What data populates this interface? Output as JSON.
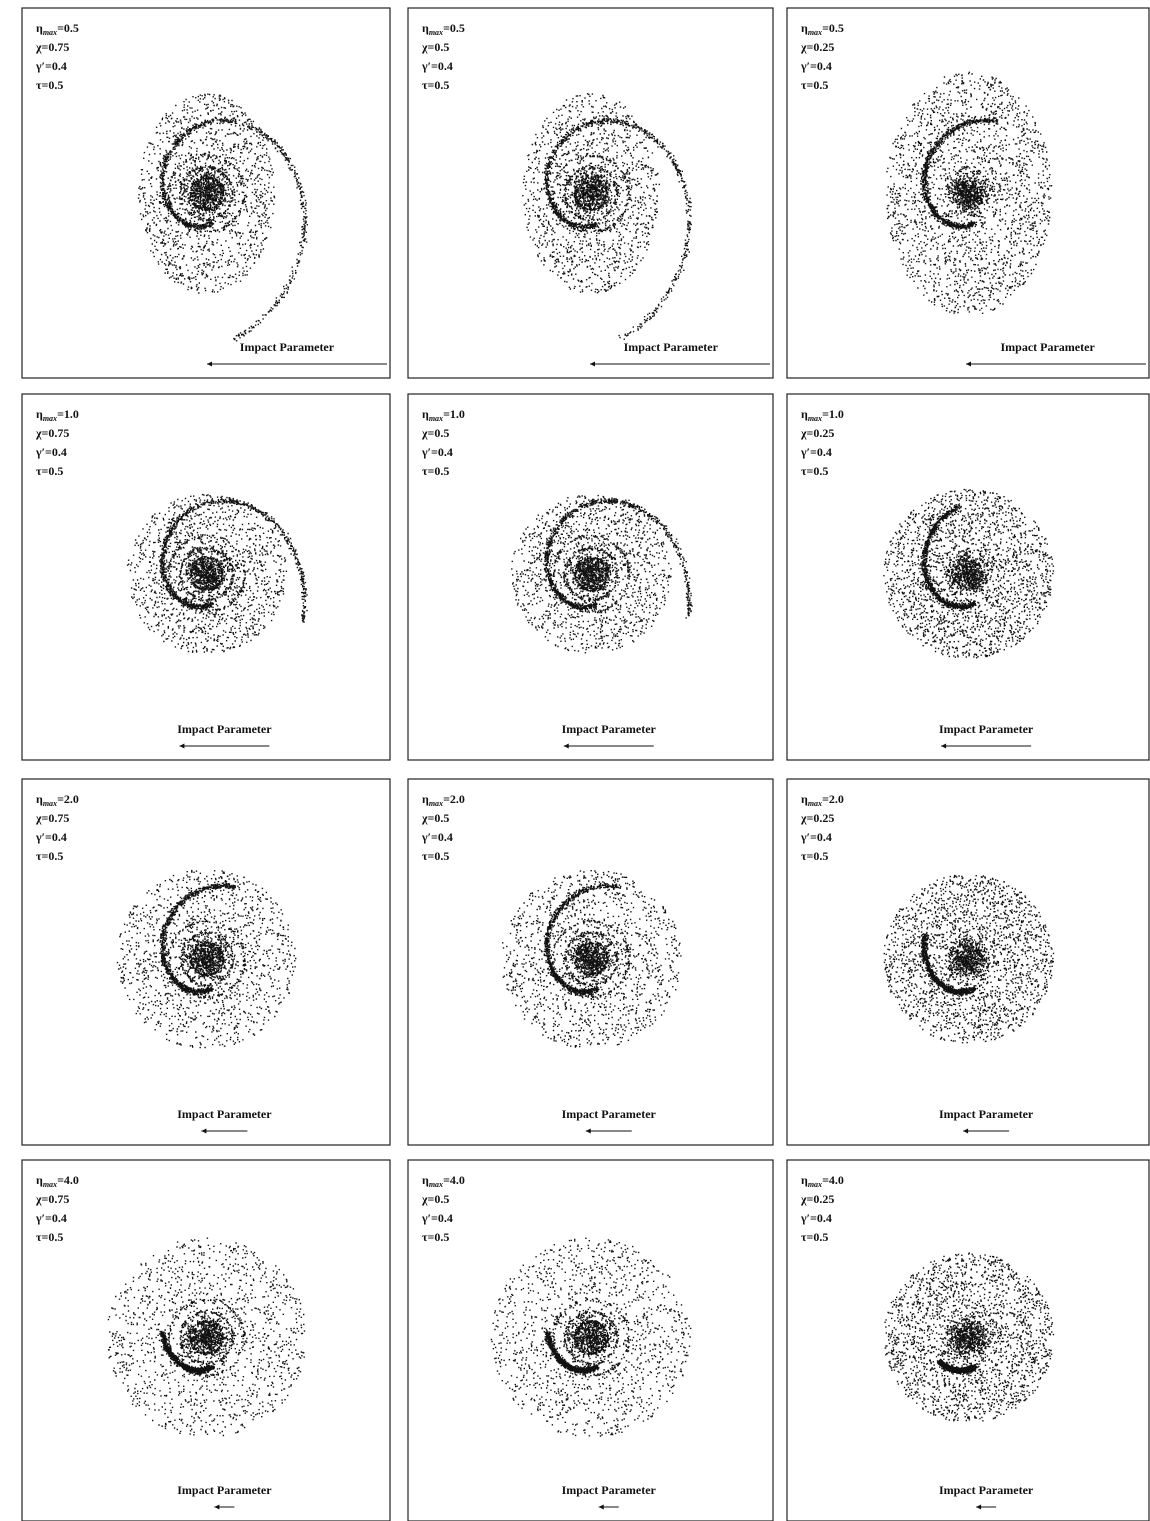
{
  "panels": [
    {
      "params": [
        {
          "name": "η",
          "sub": "max",
          "value": "=0.5"
        },
        {
          "name": "χ",
          "value": "=0.75"
        },
        {
          "name": "γ′",
          "value": "=0.4"
        },
        {
          "name": "τ",
          "value": "=0.5"
        }
      ],
      "scale_label": "Impact Parameter"
    },
    {
      "params": [
        {
          "name": "η",
          "sub": "max",
          "value": "=0.5"
        },
        {
          "name": "χ",
          "value": "=0.5"
        },
        {
          "name": "γ′",
          "value": "=0.4"
        },
        {
          "name": "τ",
          "value": "=0.5"
        }
      ],
      "scale_label": "Impact Parameter"
    },
    {
      "params": [
        {
          "name": "η",
          "sub": "max",
          "value": "=0.5"
        },
        {
          "name": "χ",
          "value": "=0.25"
        },
        {
          "name": "γ′",
          "value": "=0.4"
        },
        {
          "name": "τ",
          "value": "=0.5"
        }
      ],
      "scale_label": "Impact Parameter"
    },
    {
      "params": [
        {
          "name": "η",
          "sub": "max",
          "value": "=1.0"
        },
        {
          "name": "χ",
          "value": "=0.75"
        },
        {
          "name": "γ′",
          "value": "=0.4"
        },
        {
          "name": "τ",
          "value": "=0.5"
        }
      ],
      "scale_label": "Impact Parameter"
    },
    {
      "params": [
        {
          "name": "η",
          "sub": "max",
          "value": "=1.0"
        },
        {
          "name": "χ",
          "value": "=0.5"
        },
        {
          "name": "γ′",
          "value": "=0.4"
        },
        {
          "name": "τ",
          "value": "=0.5"
        }
      ],
      "scale_label": "Impact Parameter"
    },
    {
      "params": [
        {
          "name": "η",
          "sub": "max",
          "value": "=1.0"
        },
        {
          "name": "χ",
          "value": "=0.25"
        },
        {
          "name": "γ′",
          "value": "=0.4"
        },
        {
          "name": "τ",
          "value": "=0.5"
        }
      ],
      "scale_label": "Impact Parameter"
    },
    {
      "params": [
        {
          "name": "η",
          "sub": "max",
          "value": "=2.0"
        },
        {
          "name": "χ",
          "value": "=0.75"
        },
        {
          "name": "γ′",
          "value": "=0.4"
        },
        {
          "name": "τ",
          "value": "=0.5"
        }
      ],
      "scale_label": "Impact Parameter"
    },
    {
      "params": [
        {
          "name": "η",
          "sub": "max",
          "value": "=2.0"
        },
        {
          "name": "χ",
          "value": "=0.5"
        },
        {
          "name": "γ′",
          "value": "=0.4"
        },
        {
          "name": "τ",
          "value": "=0.5"
        }
      ],
      "scale_label": "Impact Parameter"
    },
    {
      "params": [
        {
          "name": "η",
          "sub": "max",
          "value": "=2.0"
        },
        {
          "name": "χ",
          "value": "=0.25"
        },
        {
          "name": "γ′",
          "value": "=0.4"
        },
        {
          "name": "τ",
          "value": "=0.5"
        }
      ],
      "scale_label": "Impact Parameter"
    },
    {
      "params": [
        {
          "name": "η",
          "sub": "max",
          "value": "=4.0"
        },
        {
          "name": "χ",
          "value": "=0.75"
        },
        {
          "name": "γ′",
          "value": "=0.4"
        },
        {
          "name": "τ",
          "value": "=0.5"
        }
      ],
      "scale_label": "Impact Parameter"
    },
    {
      "params": [
        {
          "name": "η",
          "sub": "max",
          "value": "=4.0"
        },
        {
          "name": "χ",
          "value": "=0.5"
        },
        {
          "name": "γ′",
          "value": "=0.4"
        },
        {
          "name": "τ",
          "value": "=0.5"
        }
      ],
      "scale_label": "Impact Parameter"
    },
    {
      "params": [
        {
          "name": "η",
          "sub": "max",
          "value": "=4.0"
        },
        {
          "name": "χ",
          "value": "=0.25"
        },
        {
          "name": "γ′",
          "value": "=0.4"
        },
        {
          "name": "τ",
          "value": "=0.5"
        }
      ],
      "scale_label": "Impact Parameter"
    }
  ]
}
